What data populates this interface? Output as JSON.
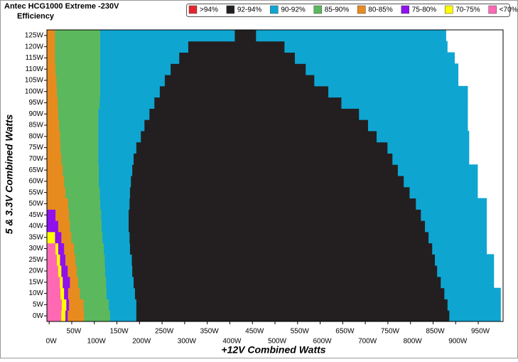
{
  "chart_data": {
    "type": "heatmap",
    "title": "Antec HCG1000 Extreme -230V",
    "subtitle": "Efficiency",
    "x_label": "+12V Combined Watts",
    "y_label": "5 & 3.3V Combined Watts",
    "xlim": [
      -5,
      1005
    ],
    "ylim": [
      -2.5,
      127.5
    ],
    "xticks": [
      {
        "value": 0,
        "label": "0W"
      },
      {
        "value": 50,
        "label": "50W"
      },
      {
        "value": 100,
        "label": "100W"
      },
      {
        "value": 150,
        "label": "150W"
      },
      {
        "value": 200,
        "label": "200W"
      },
      {
        "value": 250,
        "label": "250W"
      },
      {
        "value": 300,
        "label": "300W"
      },
      {
        "value": 350,
        "label": "350W"
      },
      {
        "value": 400,
        "label": "400W"
      },
      {
        "value": 450,
        "label": "450W"
      },
      {
        "value": 500,
        "label": "500W"
      },
      {
        "value": 550,
        "label": "550W"
      },
      {
        "value": 600,
        "label": "600W"
      },
      {
        "value": 650,
        "label": "650W"
      },
      {
        "value": 700,
        "label": "700W"
      },
      {
        "value": 750,
        "label": "750W"
      },
      {
        "value": 800,
        "label": "800W"
      },
      {
        "value": 850,
        "label": "850W"
      },
      {
        "value": 900,
        "label": "900W"
      },
      {
        "value": 950,
        "label": "950W"
      }
    ],
    "yticks": [
      {
        "value": 0,
        "label": "0W"
      },
      {
        "value": 5,
        "label": "5W"
      },
      {
        "value": 10,
        "label": "10W"
      },
      {
        "value": 15,
        "label": "15W"
      },
      {
        "value": 20,
        "label": "20W"
      },
      {
        "value": 25,
        "label": "25W"
      },
      {
        "value": 30,
        "label": "30W"
      },
      {
        "value": 35,
        "label": "35W"
      },
      {
        "value": 40,
        "label": "40W"
      },
      {
        "value": 45,
        "label": "45W"
      },
      {
        "value": 50,
        "label": "50W"
      },
      {
        "value": 55,
        "label": "55W"
      },
      {
        "value": 60,
        "label": "60W"
      },
      {
        "value": 65,
        "label": "65W"
      },
      {
        "value": 70,
        "label": "70W"
      },
      {
        "value": 75,
        "label": "75W"
      },
      {
        "value": 80,
        "label": "80W"
      },
      {
        "value": 85,
        "label": "85W"
      },
      {
        "value": 90,
        "label": "90W"
      },
      {
        "value": 95,
        "label": "95W"
      },
      {
        "value": 100,
        "label": "100W"
      },
      {
        "value": 105,
        "label": "105W"
      },
      {
        "value": 110,
        "label": "110W"
      },
      {
        "value": 115,
        "label": "115W"
      },
      {
        "value": 120,
        "label": "120W"
      },
      {
        "value": 125,
        "label": "125W"
      }
    ],
    "y": [
      0,
      5,
      10,
      15,
      20,
      25,
      30,
      35,
      40,
      45,
      50,
      55,
      60,
      65,
      70,
      75,
      80,
      85,
      90,
      95,
      100,
      105,
      110,
      115,
      120,
      125
    ],
    "series": [
      {
        "name": ">94%",
        "color": "#e3262d",
        "values": [
          null,
          null,
          null,
          null,
          null,
          null,
          null,
          null,
          null,
          null,
          null,
          null,
          null,
          null,
          null,
          null,
          null,
          null,
          null,
          null,
          null,
          null,
          null,
          null,
          null,
          null
        ]
      },
      {
        "name": "92-94%",
        "color": "#231f20",
        "values": [
          886,
          882,
          875,
          867,
          859,
          854,
          848,
          840,
          832,
          823,
          812,
          798,
          785,
          772,
          760,
          749,
          725,
          706,
          686,
          647,
          618,
          587,
          568,
          544,
          521,
          458
        ]
      },
      {
        "name": "90-92%",
        "color": "#0fa5d1",
        "values": [
          193,
          193,
          190,
          187,
          184,
          183,
          179,
          178,
          176,
          176,
          178,
          179,
          181,
          184,
          187,
          193,
          203,
          211,
          222,
          233,
          245,
          256,
          269,
          288,
          308,
          411
        ]
      },
      {
        "name": "85-90%",
        "color": "#5bb85d",
        "values": [
          135,
          132,
          127,
          126,
          124,
          123,
          121,
          118,
          116,
          115,
          113,
          112,
          110,
          110,
          109,
          109,
          109,
          109,
          109,
          112,
          113,
          113,
          113,
          113,
          113,
          113
        ]
      },
      {
        "name": "80-85%",
        "color": "#e88b1f",
        "values": [
          77,
          76,
          68,
          64,
          61,
          58,
          55,
          49,
          46,
          44,
          42,
          36,
          33,
          30,
          27,
          25,
          24,
          22,
          20,
          19,
          17,
          16,
          14,
          13,
          13,
          13
        ]
      },
      {
        "name": "75-80%",
        "color": "#9010ee",
        "values": [
          41,
          44,
          42,
          46,
          41,
          36,
          33,
          27,
          20,
          14,
          null,
          null,
          null,
          null,
          null,
          null,
          null,
          null,
          null,
          null,
          null,
          null,
          null,
          null,
          null,
          null
        ]
      },
      {
        "name": "70-75%",
        "color": "#ffff00",
        "values": [
          36,
          38,
          33,
          30,
          27,
          24,
          20,
          13,
          null,
          null,
          null,
          null,
          null,
          null,
          null,
          null,
          null,
          null,
          null,
          null,
          null,
          null,
          null,
          null,
          null,
          null
        ]
      },
      {
        "name": "<70%",
        "color": "#ff69b4",
        "values": [
          27,
          28,
          25,
          24,
          20,
          17,
          14,
          null,
          null,
          null,
          null,
          null,
          null,
          null,
          null,
          null,
          null,
          null,
          null,
          null,
          null,
          null,
          null,
          null,
          null,
          null
        ]
      }
    ],
    "max_load": [
      1000,
      1000,
      1000,
      985,
      985,
      985,
      969,
      969,
      969,
      969,
      969,
      949,
      949,
      949,
      930,
      930,
      930,
      927,
      927,
      927,
      927,
      906,
      906,
      898,
      882,
      879
    ]
  }
}
